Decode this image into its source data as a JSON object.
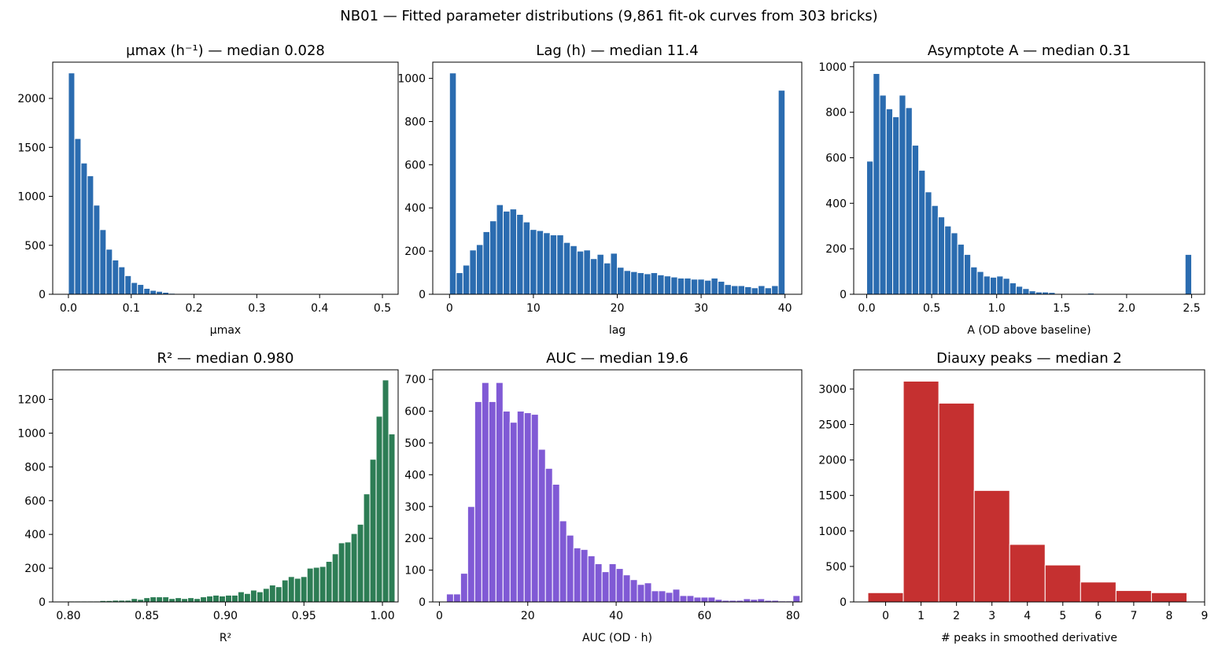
{
  "figure": {
    "suptitle": "NB01 — Fitted parameter distributions (9,861 fit-ok curves from 303 bricks)"
  },
  "chart_data": [
    {
      "type": "bar",
      "title": "µmax (h⁻¹) — median 0.028",
      "xlabel": "µmax",
      "ylabel": "",
      "color": "#2b6cb0",
      "xlim": [
        -0.025,
        0.525
      ],
      "ylim": [
        0,
        2370
      ],
      "xticks": [
        0.0,
        0.1,
        0.2,
        0.3,
        0.4,
        0.5
      ],
      "xtick_labels": [
        "0.0",
        "0.1",
        "0.2",
        "0.3",
        "0.4",
        "0.5"
      ],
      "yticks": [
        0,
        500,
        1000,
        1500,
        2000
      ],
      "bin_start": 0.0,
      "bin_width": 0.01,
      "values": [
        2260,
        1590,
        1340,
        1210,
        910,
        660,
        460,
        350,
        280,
        190,
        120,
        100,
        60,
        40,
        30,
        20,
        10,
        8,
        0,
        0,
        0,
        0,
        0,
        0,
        0,
        0,
        0,
        0,
        0,
        0,
        0,
        0,
        0,
        0,
        0,
        0,
        0,
        0,
        0,
        0,
        0,
        0,
        0,
        0,
        0,
        0,
        0,
        0,
        0,
        0
      ]
    },
    {
      "type": "bar",
      "title": "Lag (h) — median 11.4",
      "xlabel": "lag",
      "ylabel": "",
      "color": "#2b6cb0",
      "xlim": [
        -2,
        42
      ],
      "ylim": [
        0,
        1075
      ],
      "xticks": [
        0,
        10,
        20,
        30,
        40
      ],
      "xtick_labels": [
        "0",
        "10",
        "20",
        "30",
        "40"
      ],
      "yticks": [
        0,
        200,
        400,
        600,
        800,
        1000
      ],
      "bin_start": 0,
      "bin_width": 0.8,
      "values": [
        1025,
        100,
        135,
        205,
        230,
        290,
        340,
        415,
        385,
        395,
        370,
        335,
        300,
        295,
        285,
        275,
        275,
        240,
        225,
        200,
        205,
        165,
        185,
        145,
        190,
        125,
        110,
        105,
        100,
        95,
        100,
        90,
        85,
        80,
        75,
        75,
        70,
        70,
        65,
        75,
        60,
        45,
        40,
        40,
        35,
        30,
        40,
        30,
        40,
        945
      ]
    },
    {
      "type": "bar",
      "title": "Asymptote A — median 0.31",
      "xlabel": "A (OD above baseline)",
      "ylabel": "",
      "color": "#2b6cb0",
      "xlim": [
        -0.1,
        2.6
      ],
      "ylim": [
        0,
        1020
      ],
      "xticks": [
        0.0,
        0.5,
        1.0,
        1.5,
        2.0,
        2.5
      ],
      "xtick_labels": [
        "0.0",
        "0.5",
        "1.0",
        "1.5",
        "2.0",
        "2.5"
      ],
      "yticks": [
        0,
        200,
        400,
        600,
        800,
        1000
      ],
      "bin_start": 0.0,
      "bin_width": 0.05,
      "values": [
        585,
        970,
        875,
        815,
        780,
        875,
        820,
        655,
        545,
        450,
        390,
        340,
        300,
        270,
        220,
        175,
        120,
        100,
        80,
        75,
        80,
        70,
        50,
        35,
        25,
        15,
        10,
        10,
        8,
        3,
        3,
        3,
        3,
        3,
        5,
        3,
        3,
        3,
        3,
        3,
        3,
        3,
        3,
        3,
        3,
        3,
        3,
        3,
        3,
        175
      ]
    },
    {
      "type": "bar",
      "title": "R² — median 0.980",
      "xlabel": "R²",
      "ylabel": "",
      "color": "#2d7d55",
      "xlim": [
        0.79,
        1.01
      ],
      "ylim": [
        0,
        1375
      ],
      "xticks": [
        0.8,
        0.85,
        0.9,
        0.95,
        1.0
      ],
      "xtick_labels": [
        "0.80",
        "0.85",
        "0.90",
        "0.95",
        "1.00"
      ],
      "yticks": [
        0,
        200,
        400,
        600,
        800,
        1000,
        1200
      ],
      "bin_start": 0.8,
      "bin_width": 0.004,
      "values": [
        5,
        5,
        5,
        5,
        5,
        8,
        8,
        10,
        10,
        10,
        20,
        15,
        25,
        30,
        30,
        30,
        20,
        25,
        20,
        25,
        20,
        30,
        35,
        40,
        35,
        40,
        40,
        60,
        50,
        70,
        60,
        80,
        100,
        90,
        130,
        150,
        140,
        150,
        200,
        205,
        210,
        240,
        285,
        350,
        355,
        405,
        460,
        640,
        845,
        1100,
        1315,
        995
      ]
    },
    {
      "type": "bar",
      "title": "AUC — median 19.6",
      "xlabel": "AUC (OD · h)",
      "ylabel": "",
      "color": "#805ad5",
      "xlim": [
        -1.5,
        82
      ],
      "ylim": [
        0,
        730
      ],
      "xticks": [
        0,
        20,
        40,
        60,
        80
      ],
      "xtick_labels": [
        "0",
        "20",
        "40",
        "60",
        "80"
      ],
      "yticks": [
        0,
        100,
        200,
        300,
        400,
        500,
        600,
        700
      ],
      "bin_start": 1.6,
      "bin_width": 1.6,
      "values": [
        25,
        25,
        90,
        300,
        630,
        690,
        630,
        690,
        600,
        565,
        600,
        595,
        590,
        480,
        420,
        370,
        255,
        210,
        170,
        165,
        145,
        120,
        95,
        120,
        105,
        85,
        70,
        55,
        60,
        35,
        35,
        30,
        40,
        20,
        20,
        15,
        15,
        15,
        8,
        5,
        5,
        5,
        10,
        8,
        10,
        5,
        5,
        3,
        3,
        20
      ]
    },
    {
      "type": "bar",
      "title": "Diauxy peaks — median 2",
      "xlabel": "# peaks in smoothed derivative",
      "ylabel": "",
      "color": "#c53030",
      "xlim": [
        -0.9,
        9
      ],
      "ylim": [
        0,
        3270
      ],
      "xticks": [
        0,
        1,
        2,
        3,
        4,
        5,
        6,
        7,
        8,
        9
      ],
      "xtick_labels": [
        "0",
        "1",
        "2",
        "3",
        "4",
        "5",
        "6",
        "7",
        "8",
        "9"
      ],
      "yticks": [
        0,
        500,
        1000,
        1500,
        2000,
        2500,
        3000
      ],
      "bin_start": -0.5,
      "bin_width": 1,
      "values": [
        130,
        3110,
        2800,
        1570,
        810,
        520,
        280,
        160,
        130
      ]
    }
  ]
}
